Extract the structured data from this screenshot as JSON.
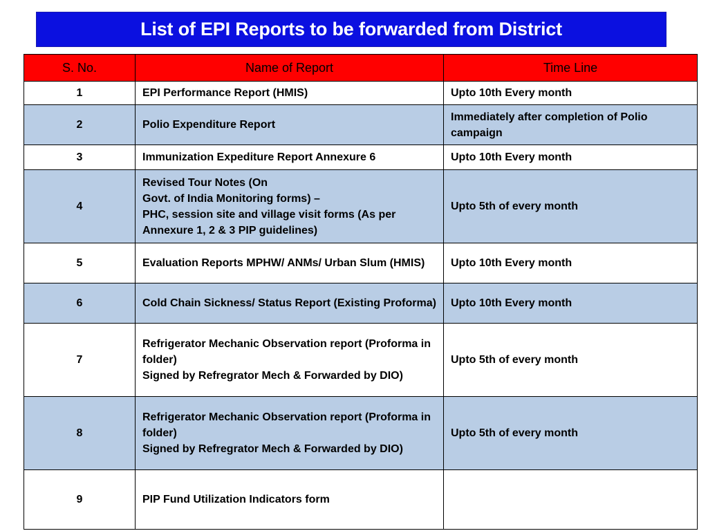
{
  "title": "List of EPI Reports to be forwarded from District",
  "colors": {
    "title_background": "#0b10e0",
    "title_text": "#ffffff",
    "header_background": "#ff0000",
    "row_alt_background": "#b9cde5",
    "row_background": "#ffffff"
  },
  "table": {
    "headers": {
      "sno": "S. No.",
      "name": "Name of Report",
      "timeline": "Time Line"
    },
    "rows": [
      {
        "sno": "1",
        "name": [
          "EPI Performance Report (HMIS)"
        ],
        "timeline": "Upto 10th Every month"
      },
      {
        "sno": "2",
        "name": [
          "Polio Expenditure Report"
        ],
        "timeline": "Immediately after completion of Polio campaign"
      },
      {
        "sno": "3",
        "name": [
          "Immunization Expediture Report  Annexure 6"
        ],
        "timeline": "Upto 10th Every month"
      },
      {
        "sno": "4",
        "name": [
          "Revised Tour Notes (On",
          "Govt. of India Monitoring forms) –",
          "PHC, session site and village visit forms  (As per Annexure 1, 2 & 3 PIP guidelines)"
        ],
        "timeline": "Upto 5th of every month"
      },
      {
        "sno": "5",
        "name": [
          "Evaluation Reports MPHW/ ANMs/ Urban Slum (HMIS)"
        ],
        "timeline": "Upto 10th Every month"
      },
      {
        "sno": "6",
        "name": [
          "Cold Chain Sickness/ Status Report (Existing Proforma)"
        ],
        "timeline": "Upto 10th Every month"
      },
      {
        "sno": "7",
        "name": [
          "Refrigerator Mechanic Observation report (Proforma in folder)",
          "Signed by Refregrator Mech & Forwarded by DIO)"
        ],
        "timeline": "Upto 5th of every month"
      },
      {
        "sno": "8",
        "name": [
          "Refrigerator Mechanic Observation report (Proforma in folder)",
          "Signed by Refregrator Mech & Forwarded by DIO)"
        ],
        "timeline": "Upto 5th of every month"
      },
      {
        "sno": "9",
        "name": [
          "PIP Fund Utilization Indicators form"
        ],
        "timeline": ""
      }
    ]
  }
}
